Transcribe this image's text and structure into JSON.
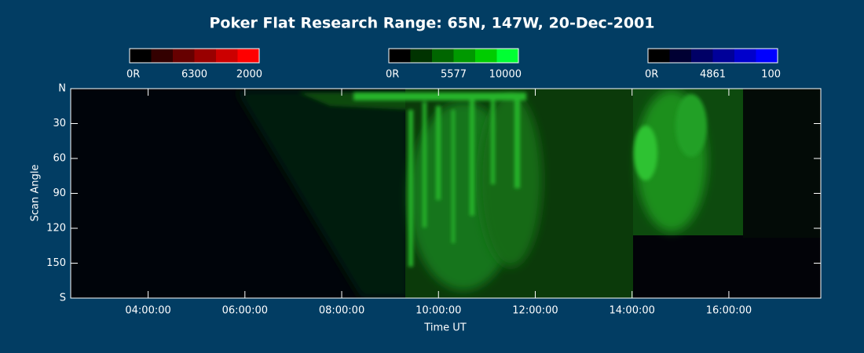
{
  "chart_data": {
    "type": "keogram",
    "title": "Poker Flat Research Range: 65N, 147W, 20-Dec-2001",
    "xlabel": "Time UT",
    "ylabel": "Scan Angle",
    "xlim": [
      2.4,
      17.9
    ],
    "xticks": [
      {
        "value": 4,
        "label": "04:00:00"
      },
      {
        "value": 6,
        "label": "06:00:00"
      },
      {
        "value": 8,
        "label": "08:00:00"
      },
      {
        "value": 10,
        "label": "10:00:00"
      },
      {
        "value": 12,
        "label": "12:00:00"
      },
      {
        "value": 14,
        "label": "14:00:00"
      },
      {
        "value": 16,
        "label": "16:00:00"
      }
    ],
    "ylim": [
      0,
      180
    ],
    "yticks": [
      {
        "value": 0,
        "label": "N"
      },
      30,
      60,
      90,
      120,
      150,
      {
        "value": 180,
        "label": "S"
      }
    ],
    "colorbars": [
      {
        "min": {
          "value": 0,
          "label": "0R"
        },
        "wavelength": "6300",
        "max": 2000,
        "colors": [
          "#000000",
          "#330000",
          "#660000",
          "#990000",
          "#cc0000",
          "#ff0000"
        ]
      },
      {
        "min": {
          "value": 0,
          "label": "0R"
        },
        "wavelength": "5577",
        "max": 10000,
        "colors": [
          "#000000",
          "#003300",
          "#006600",
          "#009900",
          "#00cc00",
          "#00ff33"
        ]
      },
      {
        "min": {
          "value": 0,
          "label": "0R"
        },
        "wavelength": "4861",
        "max": 100,
        "colors": [
          "#000000",
          "#000033",
          "#000066",
          "#000099",
          "#0000cc",
          "#0000ff"
        ]
      }
    ]
  }
}
